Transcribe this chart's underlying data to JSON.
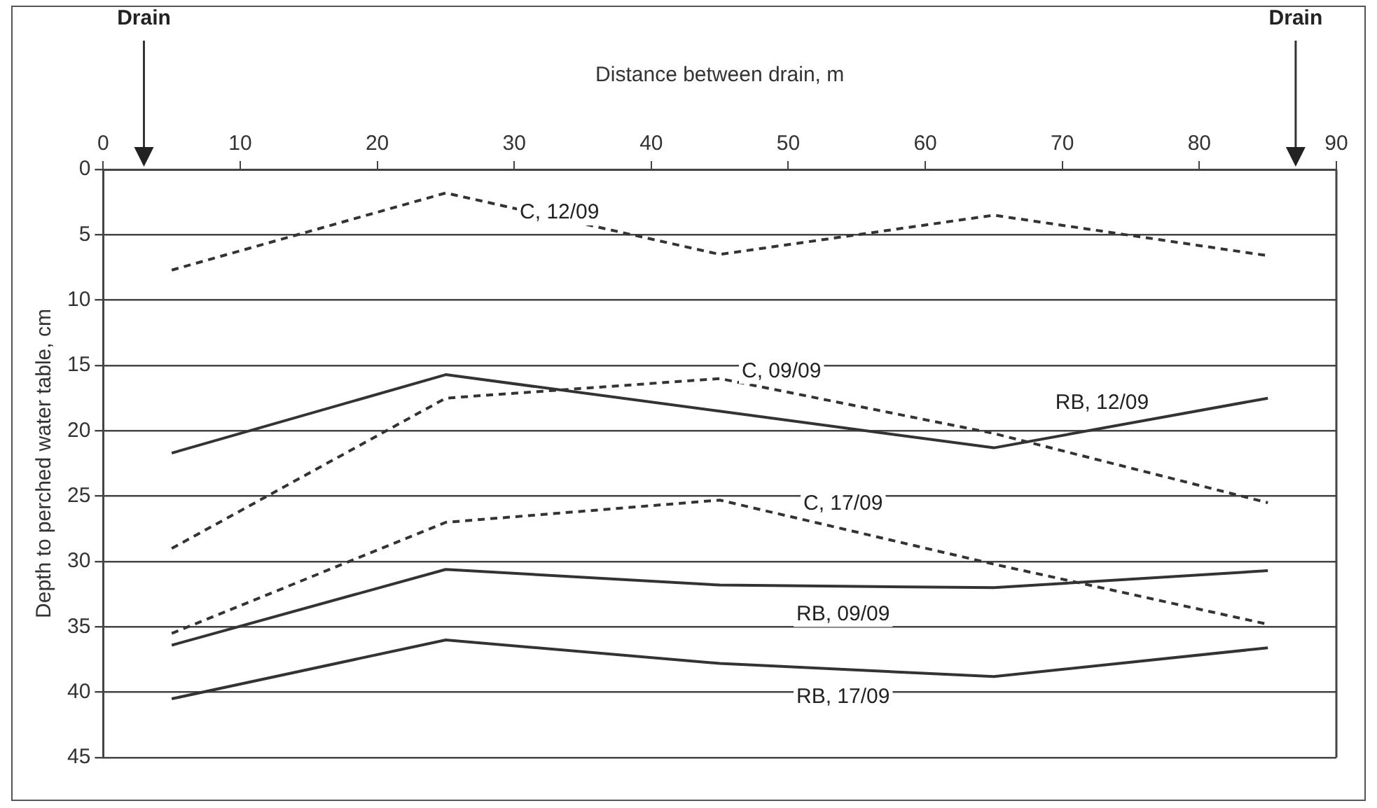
{
  "chart_data": {
    "type": "line",
    "xlabel": "Distance between drain, m",
    "ylabel": "Depth to perched water table, cm",
    "x": [
      5,
      25,
      45,
      65,
      85
    ],
    "series": [
      {
        "name": "C, 12/09",
        "color": "#333333",
        "line_style": "dashed",
        "values": [
          7.7,
          1.8,
          6.5,
          3.5,
          6.6
        ]
      },
      {
        "name": "C, 09/09",
        "color": "#333333",
        "line_style": "dashed",
        "values": [
          29,
          17.5,
          16,
          20.2,
          25.5
        ]
      },
      {
        "name": "C, 17/09",
        "color": "#333333",
        "line_style": "dashed",
        "values": [
          35.5,
          27,
          25.3,
          30.2,
          34.8
        ]
      },
      {
        "name": "RB, 12/09",
        "color": "#333333",
        "line_style": "solid",
        "values": [
          21.7,
          15.7,
          18.5,
          21.3,
          17.5
        ]
      },
      {
        "name": "RB, 09/09",
        "color": "#333333",
        "line_style": "solid",
        "values": [
          36.4,
          30.6,
          31.8,
          32,
          30.7
        ]
      },
      {
        "name": "RB, 17/09",
        "color": "#333333",
        "line_style": "solid",
        "values": [
          40.5,
          36,
          37.8,
          38.8,
          36.6
        ]
      }
    ],
    "xlim": [
      0,
      90
    ],
    "xticks": [
      0,
      10,
      20,
      30,
      40,
      50,
      60,
      70,
      80,
      90
    ],
    "ylim": [
      45,
      0
    ],
    "yticks": [
      0,
      5,
      10,
      15,
      20,
      25,
      30,
      35,
      40,
      45
    ],
    "grid": "y",
    "legend": false,
    "marker": "none",
    "annotations": [
      "Drain",
      "Drain"
    ]
  }
}
